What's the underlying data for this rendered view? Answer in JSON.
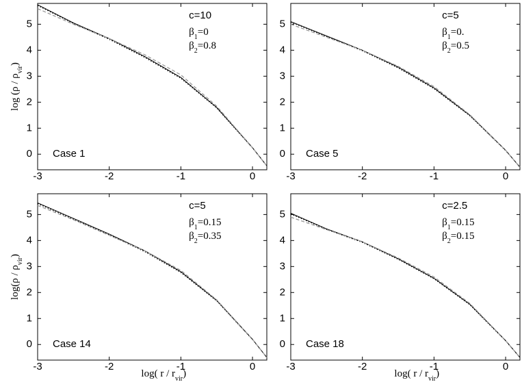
{
  "chart_data": [
    {
      "type": "line",
      "case_label": "Case 1",
      "annotation": [
        "c=10",
        [
          "β",
          "1",
          "=0"
        ],
        [
          "β",
          "2",
          "=0.8"
        ]
      ],
      "y_label": [
        "log (ρ / ρ",
        "vir",
        ")"
      ],
      "xlim": [
        -3,
        0.2
      ],
      "ylim": [
        -0.6,
        5.8
      ],
      "xticks": [
        -3,
        -2,
        -1,
        0
      ],
      "yticks": [
        0,
        1,
        2,
        3,
        4,
        5
      ],
      "x": [
        -3,
        -2.5,
        -2,
        -1.5,
        -1,
        -0.5,
        0,
        0.2
      ],
      "series": [
        {
          "color": "#000000",
          "style": "solid",
          "values": [
            5.75,
            5.05,
            4.45,
            3.75,
            2.95,
            1.8,
            0.25,
            -0.45
          ]
        },
        {
          "color": "#000000",
          "style": "dotted",
          "values": [
            5.72,
            5.03,
            4.42,
            3.72,
            2.92,
            1.78,
            0.24,
            -0.45
          ]
        },
        {
          "color": "#999999",
          "style": "dashed",
          "values": [
            5.6,
            5.0,
            4.45,
            3.82,
            3.05,
            1.85,
            0.25,
            -0.45
          ]
        }
      ]
    },
    {
      "type": "line",
      "case_label": "Case 5",
      "annotation": [
        "c=5",
        [
          "β",
          "1",
          "=0."
        ],
        [
          "β",
          "2",
          "=0.5"
        ]
      ],
      "xlim": [
        -3,
        0.2
      ],
      "ylim": [
        -0.6,
        5.8
      ],
      "xticks": [
        -3,
        -2,
        -1,
        0
      ],
      "yticks": [
        0,
        1,
        2,
        3,
        4,
        5
      ],
      "x": [
        -3,
        -2.5,
        -2,
        -1.5,
        -1,
        -0.5,
        0,
        0.2
      ],
      "series": [
        {
          "color": "#000000",
          "style": "solid",
          "values": [
            5.1,
            4.55,
            4.0,
            3.35,
            2.55,
            1.5,
            0.15,
            -0.5
          ]
        },
        {
          "color": "#000000",
          "style": "dotted",
          "values": [
            5.08,
            4.53,
            3.98,
            3.32,
            2.52,
            1.48,
            0.14,
            -0.5
          ]
        },
        {
          "color": "#999999",
          "style": "dashed",
          "values": [
            5.0,
            4.5,
            4.0,
            3.38,
            2.6,
            1.52,
            0.15,
            -0.5
          ]
        }
      ]
    },
    {
      "type": "line",
      "case_label": "Case 14",
      "annotation": [
        "c=5",
        [
          "β",
          "1",
          "=0.15"
        ],
        [
          "β",
          "2",
          "=0.35"
        ]
      ],
      "y_label": [
        "log(ρ / ρ",
        "vir",
        ")"
      ],
      "x_label": [
        "log( r / r",
        "vir",
        ")"
      ],
      "xlim": [
        -3,
        0.2
      ],
      "ylim": [
        -0.6,
        5.8
      ],
      "xticks": [
        -3,
        -2,
        -1,
        0
      ],
      "yticks": [
        0,
        1,
        2,
        3,
        4,
        5
      ],
      "x": [
        -3,
        -2.5,
        -2,
        -1.5,
        -1,
        -0.5,
        0,
        0.2
      ],
      "series": [
        {
          "color": "#000000",
          "style": "solid",
          "values": [
            5.45,
            4.85,
            4.25,
            3.6,
            2.8,
            1.7,
            0.2,
            -0.5
          ]
        },
        {
          "color": "#000000",
          "style": "dotted",
          "values": [
            5.42,
            4.82,
            4.22,
            3.57,
            2.77,
            1.68,
            0.19,
            -0.5
          ]
        },
        {
          "color": "#999999",
          "style": "dashed",
          "values": [
            5.35,
            4.8,
            4.2,
            3.6,
            2.85,
            1.72,
            0.2,
            -0.5
          ]
        }
      ]
    },
    {
      "type": "line",
      "case_label": "Case 18",
      "annotation": [
        "c=2.5",
        [
          "β",
          "1",
          "=0.15"
        ],
        [
          "β",
          "2",
          "=0.15"
        ]
      ],
      "x_label": [
        "log( r / r",
        "vir",
        ")"
      ],
      "xlim": [
        -3,
        0.2
      ],
      "ylim": [
        -0.6,
        5.8
      ],
      "xticks": [
        -3,
        -2,
        -1,
        0
      ],
      "yticks": [
        0,
        1,
        2,
        3,
        4,
        5
      ],
      "x": [
        -3,
        -2.5,
        -2,
        -1.5,
        -1,
        -0.5,
        0,
        0.2
      ],
      "series": [
        {
          "color": "#000000",
          "style": "solid",
          "values": [
            5.05,
            4.45,
            3.95,
            3.3,
            2.55,
            1.55,
            0.15,
            -0.5
          ]
        },
        {
          "color": "#000000",
          "style": "dotted",
          "values": [
            5.02,
            4.43,
            3.93,
            3.28,
            2.53,
            1.53,
            0.14,
            -0.5
          ]
        },
        {
          "color": "#999999",
          "style": "dashed",
          "values": [
            4.9,
            4.42,
            3.95,
            3.33,
            2.6,
            1.58,
            0.15,
            -0.5
          ]
        }
      ]
    }
  ]
}
